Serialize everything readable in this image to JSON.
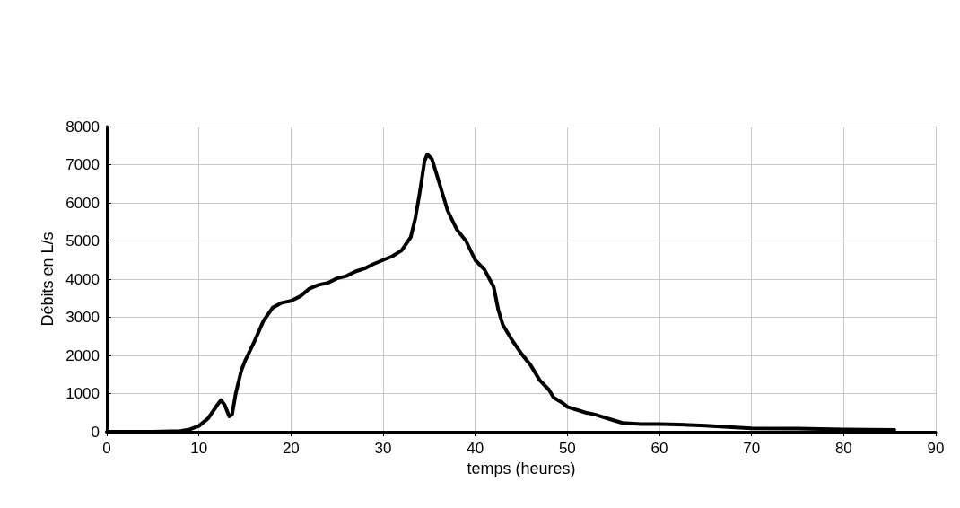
{
  "chart_data": {
    "type": "line",
    "xlabel": "temps (heures)",
    "ylabel": "Débits en L/s",
    "x": [
      0,
      5,
      8,
      9,
      10,
      11,
      12,
      12.4,
      12.8,
      13.3,
      13.6,
      14,
      14.6,
      15,
      16,
      17,
      18,
      19,
      20,
      21,
      22,
      23,
      24,
      25,
      26,
      27,
      28,
      29,
      30,
      31,
      32,
      33,
      33.5,
      34,
      34.5,
      34.8,
      35.3,
      36,
      37,
      38,
      39,
      40,
      41,
      42,
      42.5,
      43,
      44,
      45,
      46,
      47,
      48,
      48.5,
      49.5,
      50,
      52,
      53,
      55,
      56,
      58,
      60,
      62,
      65,
      67,
      70,
      75,
      80,
      85.5
    ],
    "series": [
      {
        "color": "#000000",
        "values": [
          0,
          0,
          20,
          60,
          150,
          350,
          700,
          830,
          700,
          400,
          450,
          1000,
          1600,
          1850,
          2350,
          2900,
          3250,
          3380,
          3430,
          3550,
          3750,
          3850,
          3900,
          4020,
          4080,
          4200,
          4280,
          4400,
          4500,
          4600,
          4750,
          5100,
          5600,
          6300,
          7100,
          7270,
          7150,
          6600,
          5800,
          5300,
          5000,
          4500,
          4250,
          3800,
          3200,
          2800,
          2400,
          2050,
          1750,
          1350,
          1100,
          900,
          750,
          650,
          500,
          450,
          300,
          230,
          200,
          200,
          190,
          160,
          130,
          90,
          80,
          60,
          50
        ]
      }
    ],
    "xlim": [
      0,
      90
    ],
    "xticks": [
      0,
      10,
      20,
      30,
      40,
      50,
      60,
      70,
      80,
      90
    ],
    "ylim": [
      0,
      8000
    ],
    "yticks": [
      0,
      1000,
      2000,
      3000,
      4000,
      5000,
      6000,
      7000,
      8000
    ],
    "grid": true,
    "marker": "none",
    "line_style": "solid"
  }
}
